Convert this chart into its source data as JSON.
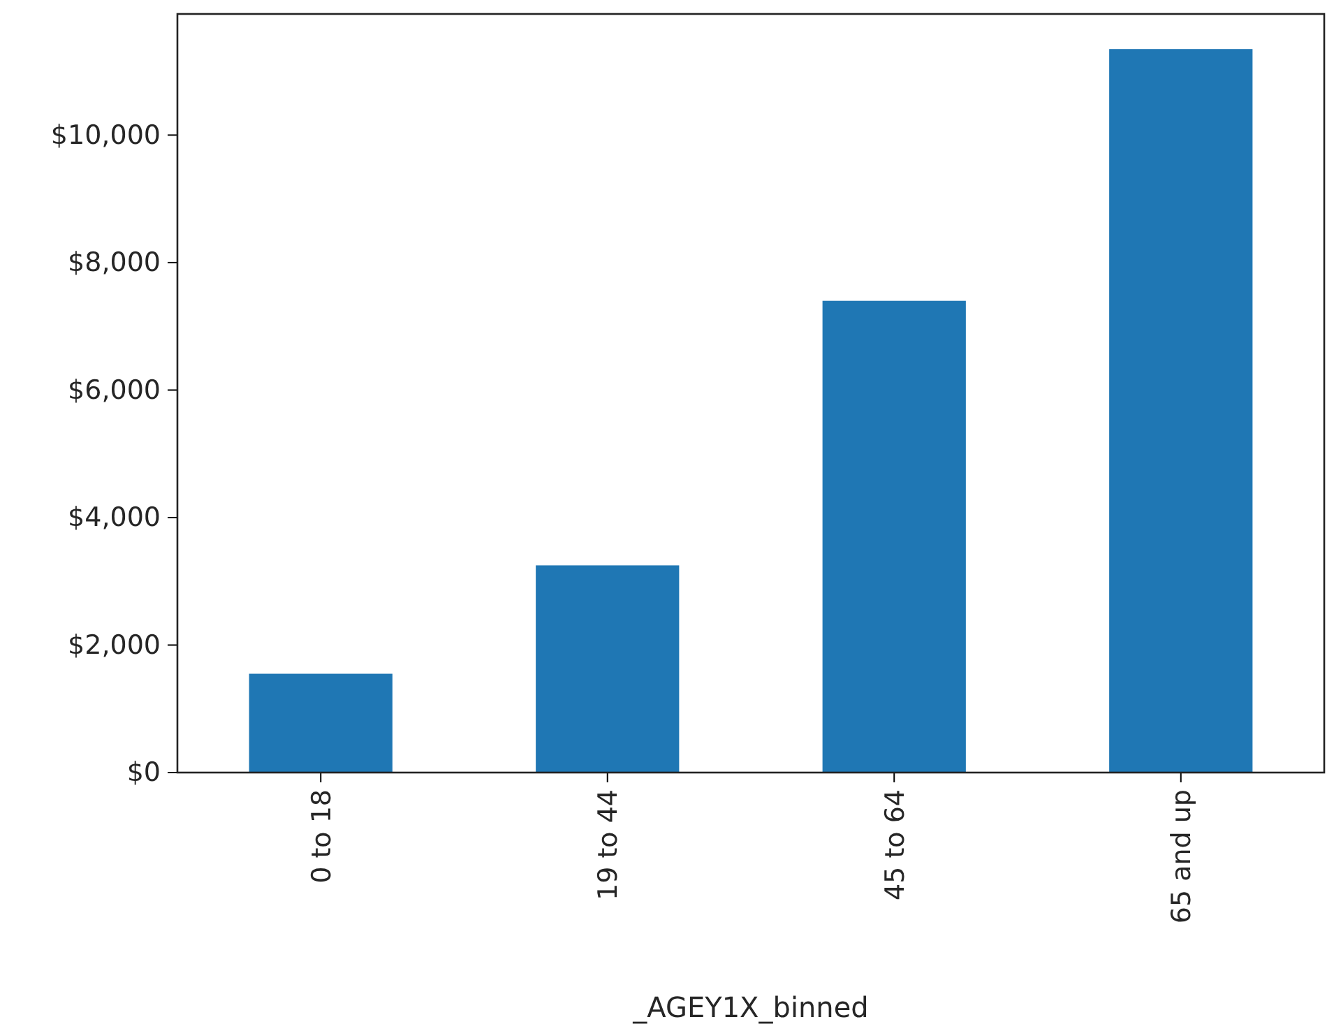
{
  "chart_data": {
    "type": "bar",
    "xlabel": "_AGEY1X_binned",
    "categories": [
      "0 to 18",
      "19 to 44",
      "45 to 64",
      "65 and up"
    ],
    "values": [
      1550,
      3250,
      7400,
      11350
    ],
    "color": "#1f77b4",
    "ylim": [
      0,
      11900
    ],
    "yticks": [
      {
        "value": 0,
        "label": "$0"
      },
      {
        "value": 2000,
        "label": "$2,000"
      },
      {
        "value": 4000,
        "label": "$4,000"
      },
      {
        "value": 6000,
        "label": "$6,000"
      },
      {
        "value": 8000,
        "label": "$8,000"
      },
      {
        "value": 10000,
        "label": "$10,000"
      }
    ],
    "grid": false
  }
}
